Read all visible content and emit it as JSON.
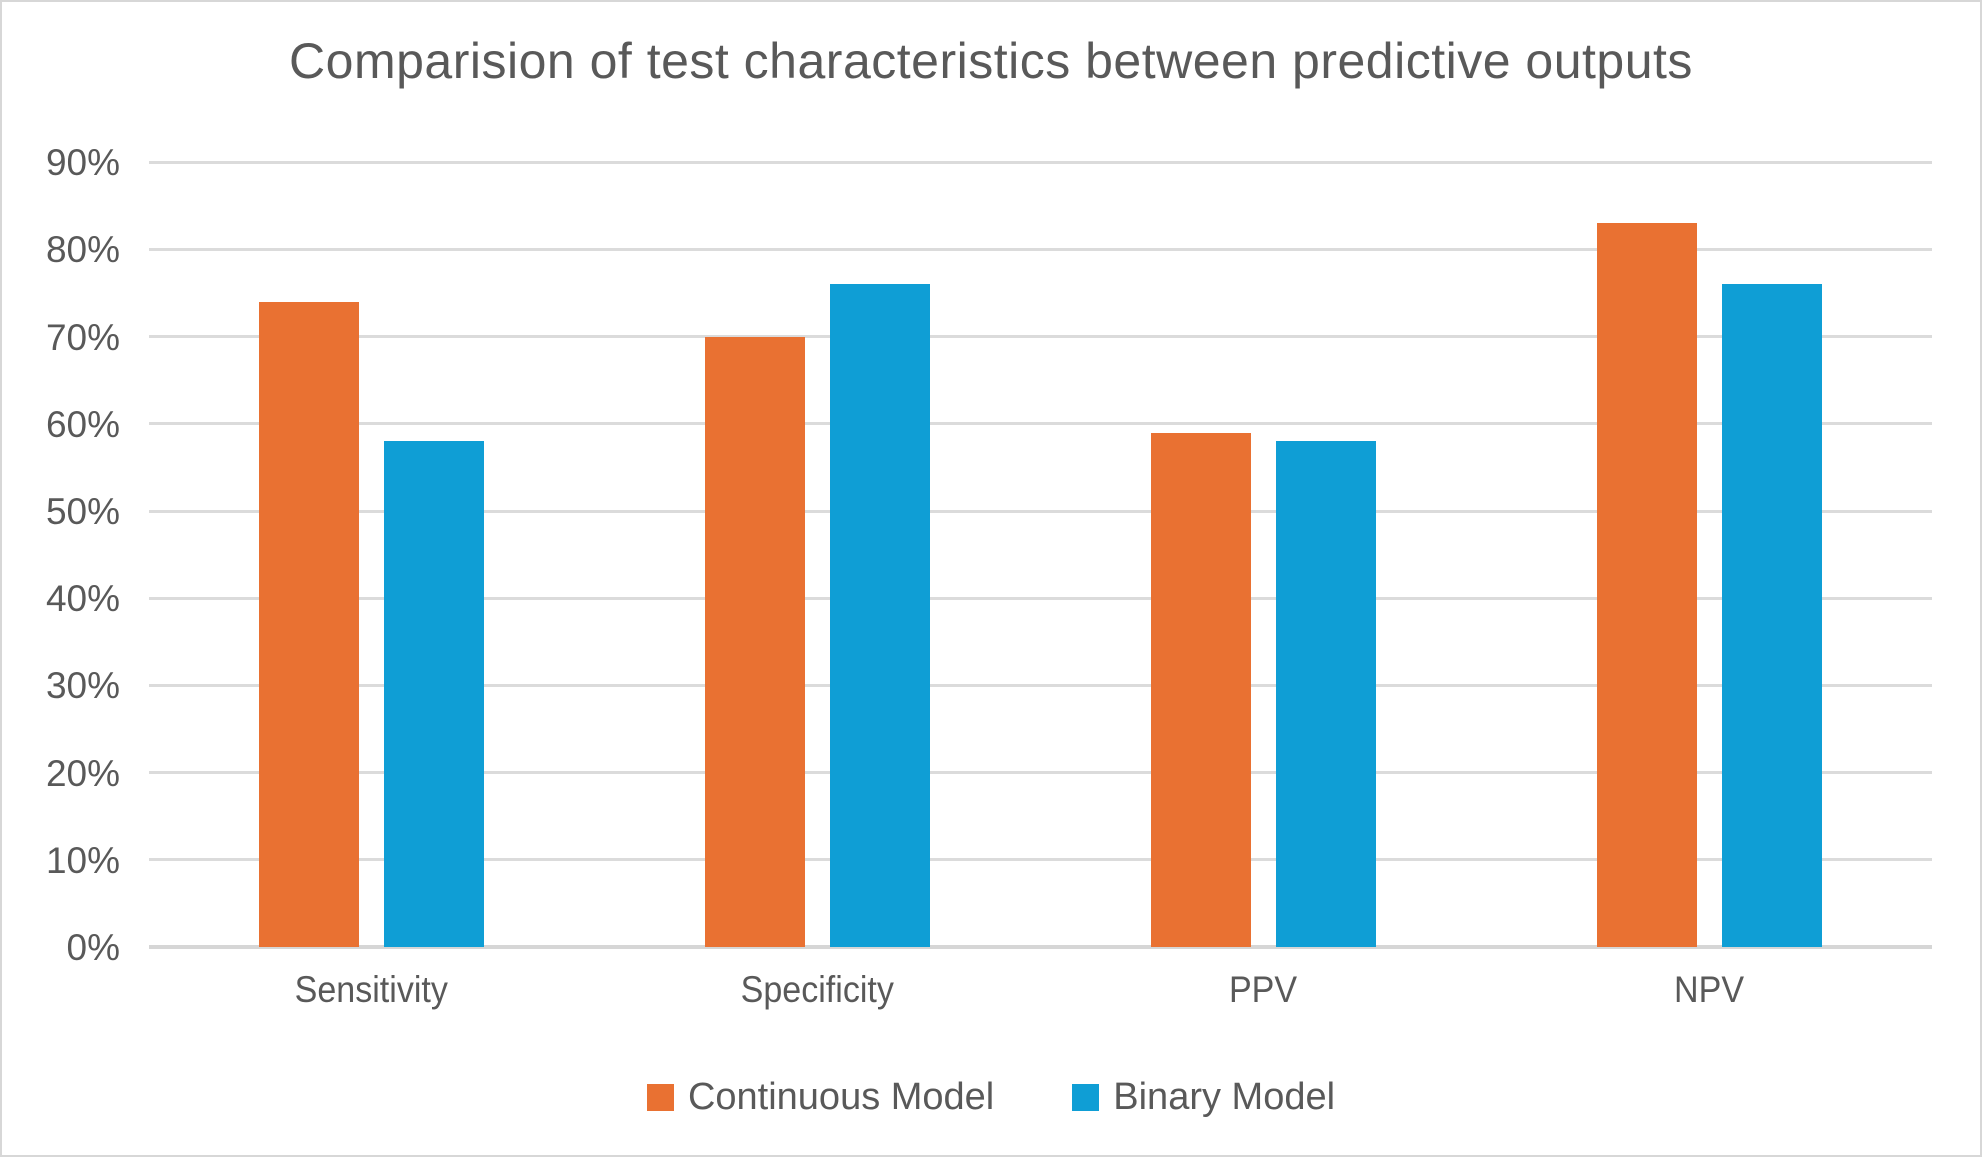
{
  "frame": {
    "background": "#FFFFFF",
    "border_color": "#D7D7D7"
  },
  "chart_data": {
    "type": "bar",
    "title": "Comparision of test characteristics between predictive outputs",
    "categories": [
      "Sensitivity",
      "Specificity",
      "PPV",
      "NPV"
    ],
    "series": [
      {
        "name": "Continuous Model",
        "color": "#E97132",
        "values": [
          74,
          70,
          59,
          83
        ]
      },
      {
        "name": "Binary Model",
        "color": "#0F9ED5",
        "values": [
          58,
          76,
          58,
          76
        ]
      }
    ],
    "unit": "%",
    "ylim": [
      0,
      90
    ],
    "ytick_step": 10,
    "ytick_labels": [
      "0%",
      "10%",
      "20%",
      "30%",
      "40%",
      "50%",
      "60%",
      "70%",
      "80%",
      "90%"
    ],
    "grid": true,
    "legend_position": "bottom",
    "text_color": "#595959",
    "gridline_color": "#DBDBDB",
    "axis_line_color": "#D6D6D6"
  }
}
